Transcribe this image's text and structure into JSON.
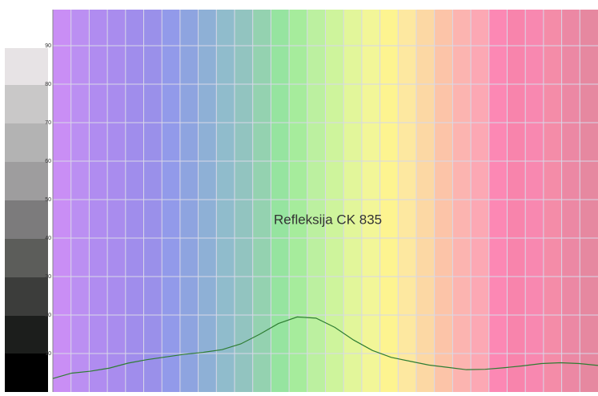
{
  "chart_data": {
    "type": "line",
    "annotation": "Refleksija CK 835",
    "categories": [
      null,
      null,
      null,
      null,
      null,
      null,
      null,
      null,
      null,
      null,
      null,
      null,
      null,
      null,
      null,
      null,
      null,
      null,
      null,
      null,
      null,
      null,
      null,
      null,
      null,
      null,
      null,
      null,
      null,
      null
    ],
    "series": [
      {
        "color": "#2e7d32",
        "values": [
          3.5,
          4.9,
          5.4,
          6.2,
          7.5,
          8.4,
          9.1,
          9.8,
          10.3,
          11.0,
          12.5,
          15.0,
          17.8,
          19.5,
          19.2,
          16.8,
          13.5,
          10.8,
          9.0,
          8.0,
          7.0,
          6.4,
          5.8,
          5.9,
          6.3,
          6.8,
          7.4,
          7.6,
          7.4,
          6.9
        ]
      }
    ],
    "ylim": [
      0,
      100
    ],
    "yticks": [
      10,
      20,
      30,
      40,
      50,
      60,
      70,
      80,
      90
    ],
    "grid": true
  }
}
